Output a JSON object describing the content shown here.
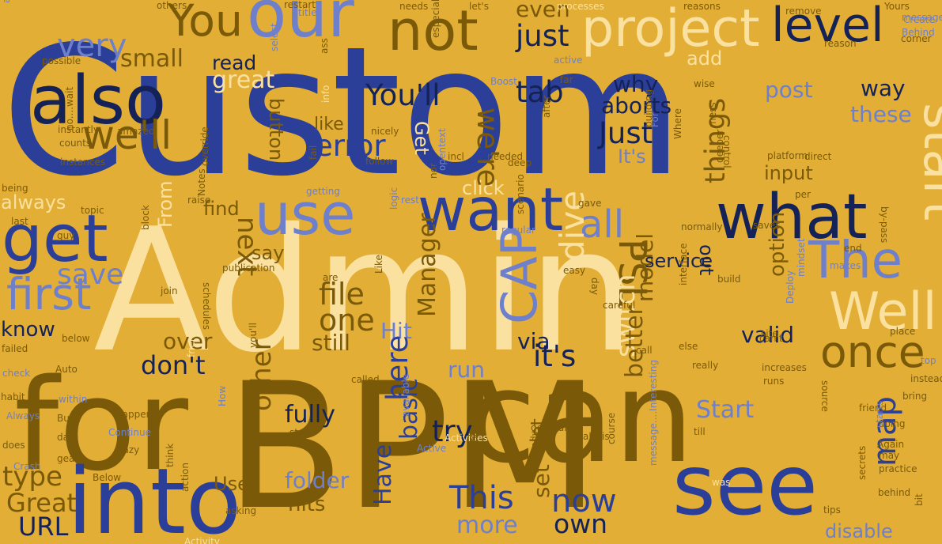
{
  "words": [
    {
      "text": "Custom",
      "c": 0
    },
    {
      "text": "Admin",
      "c": 3
    },
    {
      "text": "BPM",
      "c": 2
    },
    {
      "text": "for",
      "c": 2
    },
    {
      "text": "can",
      "c": 2
    },
    {
      "text": "into",
      "c": 0
    },
    {
      "text": "see",
      "c": 0
    },
    {
      "text": "also",
      "c": 1
    },
    {
      "text": "get",
      "c": 0
    },
    {
      "text": "our",
      "c": 4
    },
    {
      "text": "not",
      "c": 2
    },
    {
      "text": "project",
      "c": 3
    },
    {
      "text": "level",
      "c": 1
    },
    {
      "text": "what",
      "c": 1
    },
    {
      "text": "want",
      "c": 0
    },
    {
      "text": "use",
      "c": 4
    },
    {
      "text": "start",
      "c": 3
    },
    {
      "text": "Well",
      "c": 3
    },
    {
      "text": "The",
      "c": 4
    },
    {
      "text": "once",
      "c": 2
    },
    {
      "text": "first",
      "c": 4
    },
    {
      "text": "save",
      "c": 4
    },
    {
      "text": "You",
      "c": 2
    },
    {
      "text": "we'll",
      "c": 2
    },
    {
      "text": "You'll",
      "c": 1
    },
    {
      "text": "tab",
      "c": 1
    },
    {
      "text": "just",
      "c": 1
    },
    {
      "text": "very",
      "c": 4
    },
    {
      "text": "small",
      "c": 2
    },
    {
      "text": "even",
      "c": 2
    },
    {
      "text": "all",
      "c": 4
    },
    {
      "text": "error",
      "c": 0
    },
    {
      "text": "Just",
      "c": 1
    },
    {
      "text": "why",
      "c": 1
    },
    {
      "text": "aborts",
      "c": 1
    },
    {
      "text": "It's",
      "c": 4
    },
    {
      "text": "model",
      "c": 2
    },
    {
      "text": "way",
      "c": 1
    },
    {
      "text": "these",
      "c": 4
    },
    {
      "text": "post",
      "c": 4
    },
    {
      "text": "input",
      "c": 2
    },
    {
      "text": "great",
      "c": 3
    },
    {
      "text": "read",
      "c": 1
    },
    {
      "text": "add",
      "c": 3
    },
    {
      "text": "button",
      "c": 2
    },
    {
      "text": "next",
      "c": 2
    },
    {
      "text": "find",
      "c": 2
    },
    {
      "text": "say",
      "c": 2
    },
    {
      "text": "service",
      "c": 1
    },
    {
      "text": "PSL",
      "c": 2
    },
    {
      "text": "things",
      "c": 2
    },
    {
      "text": "out",
      "c": 1
    },
    {
      "text": "option",
      "c": 2
    },
    {
      "text": "dive",
      "c": 3
    },
    {
      "text": "CAP",
      "c": 4
    },
    {
      "text": "file",
      "c": 2
    },
    {
      "text": "one",
      "c": 2
    },
    {
      "text": "Manager",
      "c": 2
    },
    {
      "text": "via",
      "c": 1
    },
    {
      "text": "Hit",
      "c": 4
    },
    {
      "text": "still",
      "c": 2
    },
    {
      "text": "it's",
      "c": 1
    },
    {
      "text": "valid",
      "c": 1
    },
    {
      "text": "switch",
      "c": 3
    },
    {
      "text": "better",
      "c": 2
    },
    {
      "text": "run",
      "c": 4
    },
    {
      "text": "over",
      "c": 2
    },
    {
      "text": "don't",
      "c": 1
    },
    {
      "text": "here",
      "c": 0
    },
    {
      "text": "know",
      "c": 1
    },
    {
      "text": "always",
      "c": 3
    },
    {
      "text": "click",
      "c": 3
    },
    {
      "text": "From",
      "c": 3
    },
    {
      "text": "Start",
      "c": 4
    },
    {
      "text": "other",
      "c": 2
    },
    {
      "text": "fully",
      "c": 1
    },
    {
      "text": "try",
      "c": 1
    },
    {
      "text": "basic",
      "c": 0
    },
    {
      "text": "Have",
      "c": 0
    },
    {
      "text": "This",
      "c": 0
    },
    {
      "text": "now",
      "c": 0
    },
    {
      "text": "own",
      "c": 1
    },
    {
      "text": "set",
      "c": 2
    },
    {
      "text": "let",
      "c": 2
    },
    {
      "text": "map",
      "c": 0
    },
    {
      "text": "disable",
      "c": 4
    },
    {
      "text": "more",
      "c": 4
    },
    {
      "text": "folder",
      "c": 4
    },
    {
      "text": "hits",
      "c": 2
    },
    {
      "text": "Use",
      "c": 2
    },
    {
      "text": "type",
      "c": 2
    },
    {
      "text": "Great",
      "c": 2
    },
    {
      "text": "URL",
      "c": 1
    },
    {
      "text": "like",
      "c": 2
    },
    {
      "text": "Get",
      "c": 3
    },
    {
      "text": "we're",
      "c": 2
    },
    {
      "text": "instantly",
      "c": 2
    },
    {
      "text": "counts",
      "c": 2
    },
    {
      "text": "instances",
      "c": 2
    },
    {
      "text": "no....wait",
      "c": 2
    },
    {
      "text": "Notes",
      "c": 2
    },
    {
      "text": "override",
      "c": 2
    },
    {
      "text": "amazed",
      "c": 2
    },
    {
      "text": "raise",
      "c": 2
    },
    {
      "text": "topic",
      "c": 2
    },
    {
      "text": "being",
      "c": 2
    },
    {
      "text": "last",
      "c": 2
    },
    {
      "text": "guy",
      "c": 2
    },
    {
      "text": "block",
      "c": 2
    },
    {
      "text": "schedules",
      "c": 2
    },
    {
      "text": "publication",
      "c": 2
    },
    {
      "text": "join",
      "c": 2
    },
    {
      "text": "are",
      "c": 2
    },
    {
      "text": "Like",
      "c": 2
    },
    {
      "text": "easy",
      "c": 2
    },
    {
      "text": "careful",
      "c": 2
    },
    {
      "text": "day",
      "c": 2
    },
    {
      "text": "build",
      "c": 2
    },
    {
      "text": "interface",
      "c": 2
    },
    {
      "text": "site",
      "c": 2
    },
    {
      "text": "can't",
      "c": 2
    },
    {
      "text": "increases",
      "c": 2
    },
    {
      "text": "really",
      "c": 2
    },
    {
      "text": "call",
      "c": 2
    },
    {
      "text": "else",
      "c": 2
    },
    {
      "text": "runs",
      "c": 2
    },
    {
      "text": "source",
      "c": 2
    },
    {
      "text": "friend",
      "c": 2
    },
    {
      "text": "doing",
      "c": 2
    },
    {
      "text": "starts",
      "c": 4
    },
    {
      "text": "Again",
      "c": 2
    },
    {
      "text": "may",
      "c": 2
    },
    {
      "text": "practice",
      "c": 2
    },
    {
      "text": "was",
      "c": 3
    },
    {
      "text": "tips",
      "c": 2
    },
    {
      "text": "secrets",
      "c": 2
    },
    {
      "text": "behind",
      "c": 2
    },
    {
      "text": "bit",
      "c": 2
    },
    {
      "text": "bring",
      "c": 2
    },
    {
      "text": "instead",
      "c": 2
    },
    {
      "text": "top",
      "c": 4
    },
    {
      "text": "place",
      "c": 2
    },
    {
      "text": "mindset",
      "c": 4
    },
    {
      "text": "Deploy",
      "c": 4
    },
    {
      "text": "end",
      "c": 2
    },
    {
      "text": "by-pass",
      "c": 2
    },
    {
      "text": "makes",
      "c": 4
    },
    {
      "text": "saves",
      "c": 2
    },
    {
      "text": "per",
      "c": 2
    },
    {
      "text": "platform",
      "c": 2
    },
    {
      "text": "direct",
      "c": 2
    },
    {
      "text": "control",
      "c": 2
    },
    {
      "text": "wise",
      "c": 2
    },
    {
      "text": "reason",
      "c": 2
    },
    {
      "text": "remove",
      "c": 2
    },
    {
      "text": "Yours",
      "c": 2
    },
    {
      "text": "Create",
      "c": 4
    },
    {
      "text": "Behind",
      "c": 4
    },
    {
      "text": "corner",
      "c": 2
    },
    {
      "text": "message-mapways",
      "c": 4
    },
    {
      "text": "reasons",
      "c": 2
    },
    {
      "text": "processes",
      "c": 3
    },
    {
      "text": "let's",
      "c": 2
    },
    {
      "text": "needs",
      "c": 2
    },
    {
      "text": "especially",
      "c": 2
    },
    {
      "text": "title",
      "c": 4
    },
    {
      "text": "ass",
      "c": 2
    },
    {
      "text": "info",
      "c": 3
    },
    {
      "text": "nicely",
      "c": 2
    },
    {
      "text": "Boost",
      "c": 4
    },
    {
      "text": "far",
      "c": 2
    },
    {
      "text": "active",
      "c": 4
    },
    {
      "text": "after",
      "c": 2
    },
    {
      "text": "deep",
      "c": 2
    },
    {
      "text": "opentext",
      "c": 4
    },
    {
      "text": "needed",
      "c": 2
    },
    {
      "text": "nor",
      "c": 2
    },
    {
      "text": "incl",
      "c": 2
    },
    {
      "text": "follow",
      "c": 2
    },
    {
      "text": "fail",
      "c": 2
    },
    {
      "text": "getting",
      "c": 4
    },
    {
      "text": "logic",
      "c": 4
    },
    {
      "text": "rest",
      "c": 4
    },
    {
      "text": "regular",
      "c": 4
    },
    {
      "text": "gave",
      "c": 2
    },
    {
      "text": "scenario",
      "c": 2
    },
    {
      "text": "normally",
      "c": 2
    },
    {
      "text": "Where",
      "c": 2
    },
    {
      "text": "building",
      "c": 2
    },
    {
      "text": "deeper",
      "c": 2
    },
    {
      "text": "mess",
      "c": 2
    },
    {
      "text": "For",
      "c": 4
    },
    {
      "text": "others",
      "c": 2
    },
    {
      "text": "activities",
      "c": 4
    },
    {
      "text": "restart",
      "c": 2
    },
    {
      "text": "select",
      "c": 4
    },
    {
      "text": "possible",
      "c": 2
    },
    {
      "text": "below",
      "c": 2
    },
    {
      "text": "failed",
      "c": 2
    },
    {
      "text": "check",
      "c": 4
    },
    {
      "text": "Auto",
      "c": 2
    },
    {
      "text": "habit",
      "c": 2
    },
    {
      "text": "within",
      "c": 4
    },
    {
      "text": "Always",
      "c": 4
    },
    {
      "text": "But",
      "c": 2
    },
    {
      "text": "does",
      "c": 2
    },
    {
      "text": "date",
      "c": 2
    },
    {
      "text": "gears",
      "c": 2
    },
    {
      "text": "Crash",
      "c": 4
    },
    {
      "text": "Below",
      "c": 2
    },
    {
      "text": "asking",
      "c": 2
    },
    {
      "text": "Activity",
      "c": 3
    },
    {
      "text": "action",
      "c": 2
    },
    {
      "text": "think",
      "c": 2
    },
    {
      "text": "happens",
      "c": 2
    },
    {
      "text": "Continue",
      "c": 4
    },
    {
      "text": "crazy",
      "c": 2
    },
    {
      "text": "How",
      "c": 4
    },
    {
      "text": "friends",
      "c": 3
    },
    {
      "text": "you'll",
      "c": 2
    },
    {
      "text": "called",
      "c": 2
    },
    {
      "text": "available",
      "c": 4
    },
    {
      "text": "stuff",
      "c": 2
    },
    {
      "text": "Active",
      "c": 4
    },
    {
      "text": "Activities",
      "c": 3
    },
    {
      "text": "already",
      "c": 2
    },
    {
      "text": "analysis",
      "c": 2
    },
    {
      "text": "general",
      "c": 2
    },
    {
      "text": "till",
      "c": 2
    },
    {
      "text": "course",
      "c": 2
    },
    {
      "text": "message....Interesting",
      "c": 4
    },
    {
      "text": "increase",
      "c": 2
    }
  ]
}
